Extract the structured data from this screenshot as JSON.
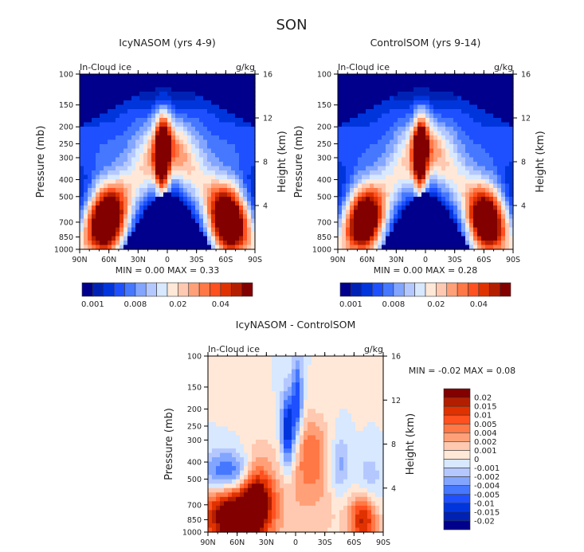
{
  "figure_title": "SON",
  "palette": [
    "#00008c",
    "#0022b4",
    "#0035dc",
    "#1e50ff",
    "#4678ff",
    "#82a5ff",
    "#b4c8ff",
    "#d7e8ff",
    "#ffe8d7",
    "#ffc8b0",
    "#ffa078",
    "#ff7846",
    "#ff5020",
    "#e03200",
    "#b41e00",
    "#820000"
  ],
  "chart_data": [
    {
      "type": "heatmap",
      "id": "icy",
      "title": "IcyNASOM (yrs 4-9)",
      "variable_label": "In-Cloud ice",
      "units_label": "g/kg",
      "xlabel": "",
      "ylabel": "Pressure (mb)",
      "y2label": "Height (km)",
      "xticks": [
        "90N",
        "60N",
        "30N",
        "0",
        "30S",
        "60S",
        "90S"
      ],
      "yticks": [
        100,
        150,
        200,
        250,
        300,
        400,
        500,
        700,
        850,
        1000
      ],
      "y2ticks": [
        4,
        8,
        12,
        16
      ],
      "ylim": [
        1000,
        100
      ],
      "min_text": "MIN =   0.00   MAX =   0.33",
      "min": 0.0,
      "max": 0.33,
      "colorbar": {
        "orientation": "horizontal",
        "labels": [
          "0.001",
          "0.008",
          "0.02",
          "0.04"
        ]
      },
      "features": "Low values (dark blue) in stratosphere and in tropical lower troposphere dome; high values (red) near 60N and 60S at ~700 mb and a narrow maximum near 5N at ~300 mb."
    },
    {
      "type": "heatmap",
      "id": "control",
      "title": "ControlSOM (yrs 9-14)",
      "variable_label": "In-Cloud ice",
      "units_label": "g/kg",
      "ylabel": "Pressure (mb)",
      "y2label": "Height (km)",
      "xticks": [
        "90N",
        "60N",
        "30N",
        "0",
        "30S",
        "60S",
        "90S"
      ],
      "yticks": [
        100,
        150,
        200,
        250,
        300,
        400,
        500,
        700,
        850,
        1000
      ],
      "y2ticks": [
        4,
        8,
        12,
        16
      ],
      "ylim": [
        1000,
        100
      ],
      "min_text": "MIN =   0.00   MAX =   0.28",
      "min": 0.0,
      "max": 0.28,
      "colorbar": {
        "orientation": "horizontal",
        "labels": [
          "0.001",
          "0.008",
          "0.02",
          "0.04"
        ]
      }
    },
    {
      "type": "heatmap",
      "id": "diff",
      "title": "IcyNASOM - ControlSOM",
      "variable_label": "In-Cloud ice",
      "units_label": "g/kg",
      "ylabel": "Pressure (mb)",
      "y2label": "Height (km)",
      "xticks": [
        "90N",
        "60N",
        "30N",
        "0",
        "30S",
        "60S",
        "90S"
      ],
      "yticks": [
        100,
        150,
        200,
        250,
        300,
        400,
        500,
        700,
        850,
        1000
      ],
      "y2ticks": [
        4,
        8,
        12,
        16
      ],
      "ylim": [
        1000,
        100
      ],
      "min_text": "MIN =   -0.02   MAX =   0.08",
      "min": -0.02,
      "max": 0.08,
      "colorbar": {
        "orientation": "vertical",
        "labels": [
          "0.02",
          "0.015",
          "0.01",
          "0.005",
          "0.004",
          "0.002",
          "0.001",
          "0",
          "-0.001",
          "-0.002",
          "-0.004",
          "-0.005",
          "-0.01",
          "-0.015",
          "-0.02"
        ]
      },
      "features": "Positive (red) anomalies in NH lower troposphere 90N-30N below 500 mb and near 60S-75S surface; negative (blue) anomalies 90N-30N at 400-500 mb and near 5N-5S 150-300 mb; weak values elsewhere."
    }
  ]
}
